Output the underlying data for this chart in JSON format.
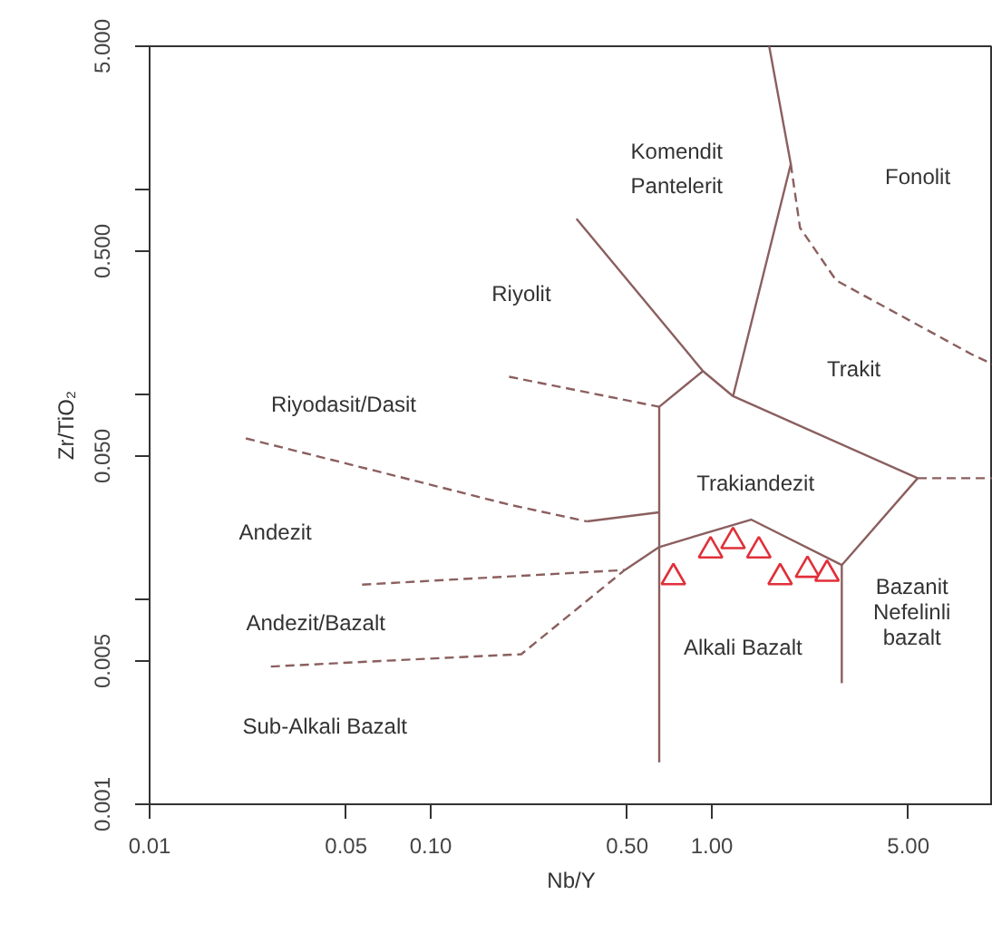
{
  "chart_data": {
    "type": "scatter",
    "xlabel": "Nb/Y",
    "ylabel": "Zr/TiO₂",
    "log": "xy",
    "grid": false,
    "xlim": [
      0.01,
      10
    ],
    "ylim": [
      0.001,
      5
    ],
    "xticks": [
      {
        "value": 0.01,
        "label": "0.01"
      },
      {
        "value": 0.05,
        "label": "0.05"
      },
      {
        "value": 0.1,
        "label": "0.10"
      },
      {
        "value": 0.5,
        "label": "0.50"
      },
      {
        "value": 1,
        "label": "1.00"
      },
      {
        "value": 5,
        "label": "5.00"
      }
    ],
    "yticks": [
      {
        "value": 0.001,
        "label": "0.001"
      },
      {
        "value": 0.005,
        "label": "0.005"
      },
      {
        "value": 0.01,
        "label": null
      },
      {
        "value": 0.05,
        "label": "0.050"
      },
      {
        "value": 0.1,
        "label": null
      },
      {
        "value": 0.5,
        "label": "0.500"
      },
      {
        "value": 1,
        "label": null
      },
      {
        "value": 5,
        "label": "5.000"
      }
    ],
    "series": [
      {
        "marker": "triangle",
        "color": "#e0303a",
        "x": [
          0.73,
          0.99,
          1.19,
          1.47,
          1.75,
          2.19,
          2.57
        ],
        "values": [
          0.0128,
          0.0173,
          0.0192,
          0.0173,
          0.0128,
          0.0139,
          0.0133
        ]
      },
      {
        "type": "line",
        "color": "#8b5f5f",
        "line_style": "solid",
        "x": [
          0.93,
          0.65,
          0.65
        ],
        "values": [
          0.13,
          0.087,
          0.0016
        ]
      },
      {
        "type": "line",
        "color": "#8b5f5f",
        "line_style": "solid",
        "x": [
          0.33,
          0.93,
          1.19,
          5.4
        ],
        "values": [
          0.72,
          0.13,
          0.098,
          0.039
        ]
      },
      {
        "type": "line",
        "color": "#8b5f5f",
        "line_style": "solid",
        "x": [
          1.6,
          1.91,
          1.19
        ],
        "values": [
          5,
          1.33,
          0.098
        ]
      },
      {
        "type": "line",
        "color": "#8b5f5f",
        "line_style": "solid",
        "x": [
          0.49,
          0.65,
          1.38,
          2.9,
          5.4
        ],
        "values": [
          0.0139,
          0.018,
          0.0245,
          0.0147,
          0.039
        ]
      },
      {
        "type": "line",
        "color": "#8b5f5f",
        "line_style": "solid",
        "x": [
          2.9,
          2.9
        ],
        "values": [
          0.0147,
          0.0039
        ]
      },
      {
        "type": "line",
        "color": "#8b5f5f",
        "line_style": "solid",
        "x": [
          0.36,
          0.65
        ],
        "values": [
          0.024,
          0.0266
        ]
      },
      {
        "type": "line",
        "color": "#8b5f5f",
        "line_style": "dashed",
        "x": [
          5.4,
          10
        ],
        "values": [
          0.039,
          0.039
        ]
      },
      {
        "type": "line",
        "color": "#8b5f5f",
        "line_style": "dashed",
        "x": [
          0.022,
          0.061,
          0.19,
          0.36
        ],
        "values": [
          0.061,
          0.043,
          0.029,
          0.024
        ]
      },
      {
        "type": "line",
        "color": "#8b5f5f",
        "line_style": "dashed",
        "x": [
          0.19,
          0.65
        ],
        "values": [
          0.122,
          0.087
        ]
      },
      {
        "type": "line",
        "color": "#8b5f5f",
        "line_style": "dashed",
        "x": [
          0.057,
          0.49
        ],
        "values": [
          0.0118,
          0.0139
        ]
      },
      {
        "type": "line",
        "color": "#8b5f5f",
        "line_style": "dashed",
        "x": [
          0.027,
          0.066,
          0.21,
          0.49
        ],
        "values": [
          0.0047,
          0.005,
          0.0054,
          0.0139
        ]
      },
      {
        "type": "line",
        "color": "#8b5f5f",
        "line_style": "dashed",
        "x": [
          1.91,
          2.06,
          2.77,
          8.4,
          10
        ],
        "values": [
          1.33,
          0.65,
          0.36,
          0.157,
          0.14
        ]
      }
    ],
    "annotations": [
      "Komendit",
      "Pantelerit",
      "Fonolit",
      "Riyolit",
      "Trakit",
      "Riyodasit/Dasit",
      "Trakiandezit",
      "Andezit",
      "Andezit/Bazalt",
      "Alkali Bazalt",
      "Bazanit",
      "Nefelinli",
      "bazalt",
      "Sub-Alkali Bazalt"
    ]
  }
}
